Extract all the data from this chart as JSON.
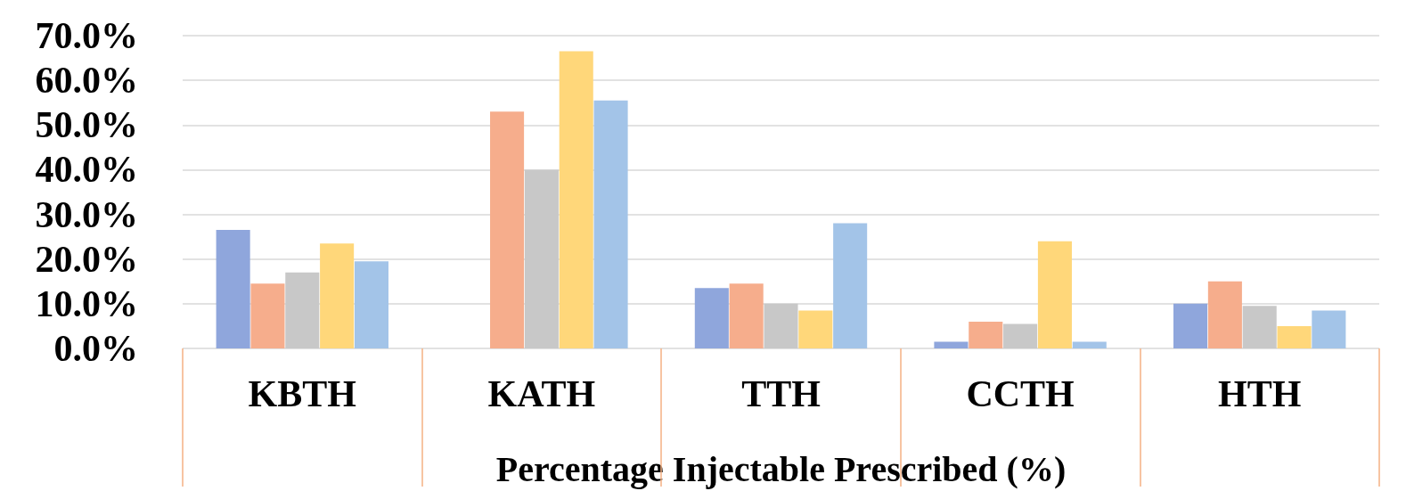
{
  "chart_data": {
    "type": "bar",
    "xlabel": "Percentage Injectable Prescribed (%)",
    "categories": [
      "KBTH",
      "KATH",
      "TTH",
      "CCTH",
      "HTH"
    ],
    "series": [
      {
        "color": "#8fa6dc",
        "values": [
          26.5,
          0,
          13.5,
          1.5,
          10
        ]
      },
      {
        "color": "#f6ad8c",
        "values": [
          14.5,
          53,
          14.5,
          6,
          15
        ]
      },
      {
        "color": "#c8c8c8",
        "values": [
          17,
          40,
          10,
          5.5,
          9.5
        ]
      },
      {
        "color": "#ffd77a",
        "values": [
          23.5,
          66.5,
          8.5,
          24,
          5
        ]
      },
      {
        "color": "#a3c4e8",
        "values": [
          19.5,
          55.5,
          28,
          1.5,
          8.5
        ]
      }
    ],
    "ylim": [
      0,
      70
    ],
    "yticks": [
      {
        "value": 0,
        "label": "0.0%"
      },
      {
        "value": 10,
        "label": "10.0%"
      },
      {
        "value": 20,
        "label": "20.0%"
      },
      {
        "value": 30,
        "label": "30.0%"
      },
      {
        "value": 40,
        "label": "40.0%"
      },
      {
        "value": 50,
        "label": "50.0%"
      },
      {
        "value": 60,
        "label": "60.0%"
      },
      {
        "value": 70,
        "label": "70.0%"
      }
    ],
    "grid": "y"
  }
}
